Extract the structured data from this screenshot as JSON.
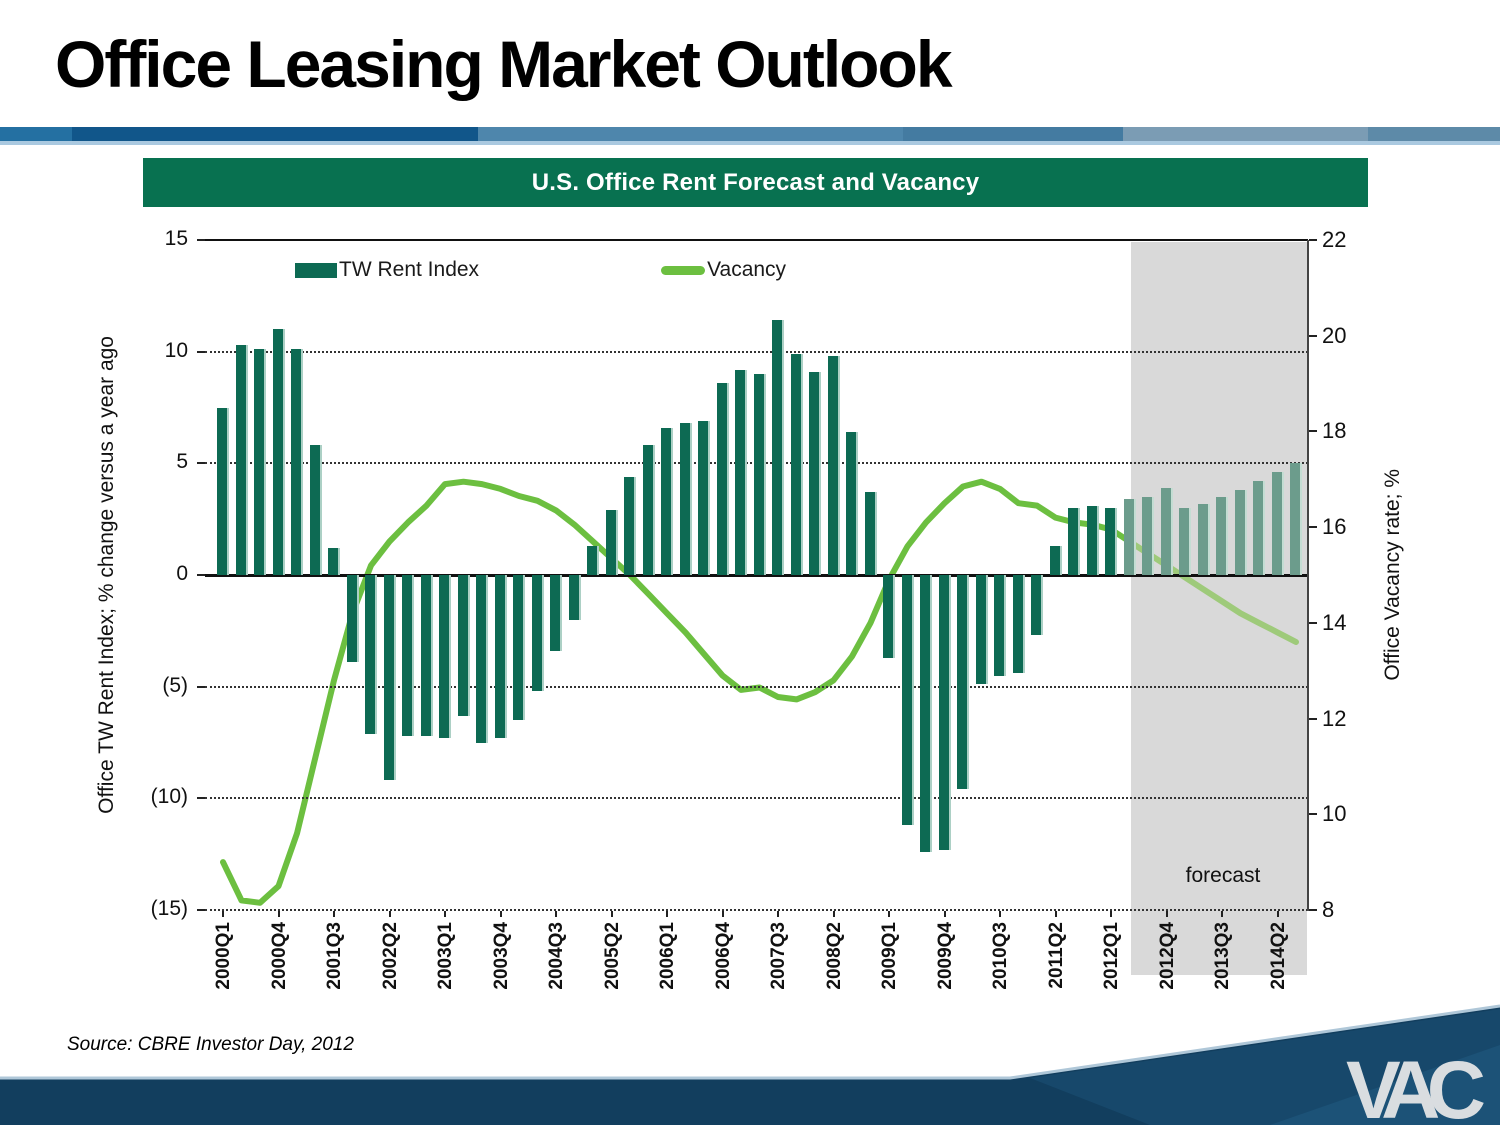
{
  "slide": {
    "title": "Office Leasing Market Outlook",
    "source": "Source: CBRE Investor Day, 2012",
    "logo": "VAC"
  },
  "chart": {
    "header": "U.S. Office Rent Forecast and Vacancy",
    "legend": [
      {
        "label": "TW Rent Index",
        "swatch": "bar-swatch"
      },
      {
        "label": "Vacancy",
        "swatch": "line-swatch"
      }
    ],
    "forecast_label": "forecast",
    "left_axis": {
      "title": "Office TW Rent Index;  % change versus a year ago",
      "ticks": [
        "15",
        "10",
        "5",
        "0",
        "(5)",
        "(10)",
        "(15)"
      ],
      "values": [
        15,
        10,
        5,
        0,
        -5,
        -10,
        -15
      ]
    },
    "right_axis": {
      "title": "Office Vacancy rate; %",
      "ticks": [
        "22",
        "20",
        "18",
        "16",
        "14",
        "12",
        "10",
        "8"
      ],
      "values": [
        22,
        20,
        18,
        16,
        14,
        12,
        10,
        8
      ]
    },
    "colors": {
      "bar": "#0D6A53",
      "bar_forecast": "#6C9C8C",
      "line": "#6CBF40",
      "line_forecast": "#9ECA7A",
      "header_bg": "#087150",
      "forecast_band": "#d9d9d9"
    }
  },
  "chart_data": {
    "type": "bar+line",
    "title": "U.S. Office Rent Forecast and Vacancy",
    "categories": [
      "2000Q1",
      "2000Q2",
      "2000Q3",
      "2000Q4",
      "2001Q1",
      "2001Q2",
      "2001Q3",
      "2001Q4",
      "2002Q1",
      "2002Q2",
      "2002Q3",
      "2002Q4",
      "2003Q1",
      "2003Q2",
      "2003Q3",
      "2003Q4",
      "2004Q1",
      "2004Q2",
      "2004Q3",
      "2004Q4",
      "2005Q1",
      "2005Q2",
      "2005Q3",
      "2005Q4",
      "2006Q1",
      "2006Q2",
      "2006Q3",
      "2006Q4",
      "2007Q1",
      "2007Q2",
      "2007Q3",
      "2007Q4",
      "2008Q1",
      "2008Q2",
      "2008Q3",
      "2008Q4",
      "2009Q1",
      "2009Q2",
      "2009Q3",
      "2009Q4",
      "2010Q1",
      "2010Q2",
      "2010Q3",
      "2010Q4",
      "2011Q1",
      "2011Q2",
      "2011Q3",
      "2011Q4",
      "2012Q1",
      "2012Q2",
      "2012Q3",
      "2012Q4",
      "2013Q1",
      "2013Q2",
      "2013Q3",
      "2013Q4",
      "2014Q1",
      "2014Q2",
      "2014Q3"
    ],
    "x_tick_labels": [
      "2000Q1",
      "2000Q4",
      "2001Q3",
      "2002Q2",
      "2003Q1",
      "2003Q4",
      "2004Q3",
      "2005Q2",
      "2006Q1",
      "2006Q4",
      "2007Q3",
      "2008Q2",
      "2009Q1",
      "2009Q4",
      "2010Q3",
      "2011Q2",
      "2012Q1",
      "2012Q4",
      "2013Q3",
      "2014Q2"
    ],
    "x_tick_every": 3,
    "series": [
      {
        "name": "TW Rent Index",
        "type": "bar",
        "axis": "left",
        "values": [
          7.5,
          10.3,
          10.1,
          11.0,
          10.1,
          5.8,
          1.2,
          -3.9,
          -7.1,
          -9.2,
          -7.2,
          -7.2,
          -7.3,
          -6.3,
          -7.5,
          -7.3,
          -6.5,
          -5.2,
          -3.4,
          -2.0,
          1.3,
          2.9,
          4.4,
          5.8,
          6.6,
          6.8,
          6.9,
          8.6,
          9.2,
          9.0,
          11.4,
          9.9,
          9.1,
          9.8,
          6.4,
          3.7,
          -3.7,
          -11.2,
          -12.4,
          -12.3,
          -9.6,
          -4.9,
          -4.5,
          -4.4,
          -2.7,
          1.3,
          3.0,
          3.1,
          3.0,
          3.4,
          3.5,
          3.9,
          3.0,
          3.2,
          3.5,
          3.8,
          4.2,
          4.6,
          5.0
        ]
      },
      {
        "name": "Vacancy",
        "type": "line",
        "axis": "right",
        "values": [
          9.0,
          8.2,
          8.15,
          8.5,
          9.6,
          11.2,
          12.8,
          14.2,
          15.2,
          15.7,
          16.1,
          16.45,
          16.9,
          16.95,
          16.9,
          16.8,
          16.65,
          16.55,
          16.35,
          16.05,
          15.7,
          15.35,
          15.0,
          14.6,
          14.2,
          13.8,
          13.35,
          12.9,
          12.6,
          12.65,
          12.45,
          12.4,
          12.55,
          12.8,
          13.3,
          14.0,
          14.9,
          15.6,
          16.1,
          16.5,
          16.85,
          16.95,
          16.8,
          16.5,
          16.45,
          16.2,
          16.1,
          16.05,
          15.95,
          15.7,
          15.45,
          15.2,
          14.95,
          14.7,
          14.45,
          14.2,
          14.0,
          13.8,
          13.6
        ]
      }
    ],
    "left_ylabel": "Office TW Rent Index;  % change versus a year ago",
    "right_ylabel": "Office Vacancy rate; %",
    "left_ylim": [
      -15,
      15
    ],
    "right_ylim": [
      8,
      22
    ],
    "grid": "dotted horizontal at every 5 (left axis)",
    "legend_position": "top-left inside plot",
    "forecast_start_index": 49,
    "forecast_region_label": "forecast"
  }
}
